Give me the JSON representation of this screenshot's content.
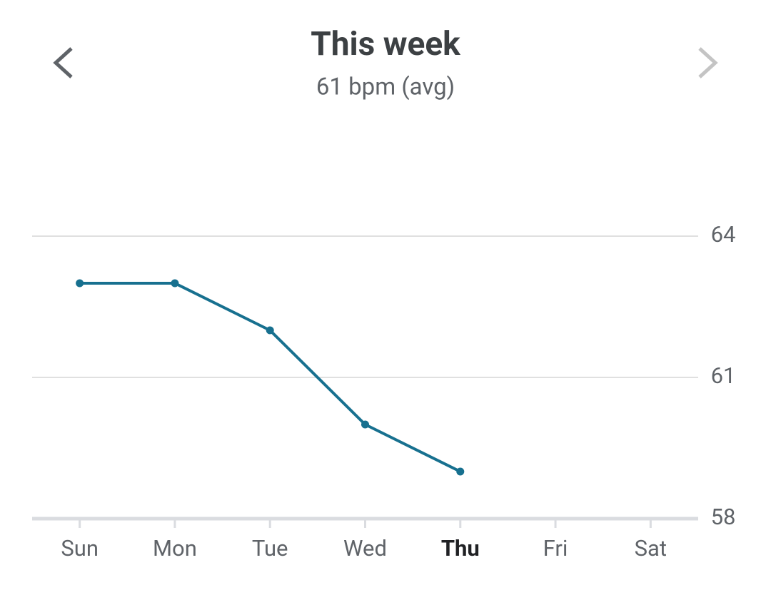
{
  "chart_data": {
    "type": "line",
    "title": "This week",
    "subtitle": "61 bpm (avg)",
    "categories": [
      "Sun",
      "Mon",
      "Tue",
      "Wed",
      "Thu",
      "Fri",
      "Sat"
    ],
    "series": [
      {
        "name": "bpm",
        "color": "#17708f",
        "values": [
          63,
          63,
          62,
          60,
          59,
          null,
          null
        ]
      }
    ],
    "ylim": [
      58,
      64
    ],
    "yticks": [
      58,
      61,
      64
    ],
    "grid": true,
    "highlight_index": 4
  }
}
